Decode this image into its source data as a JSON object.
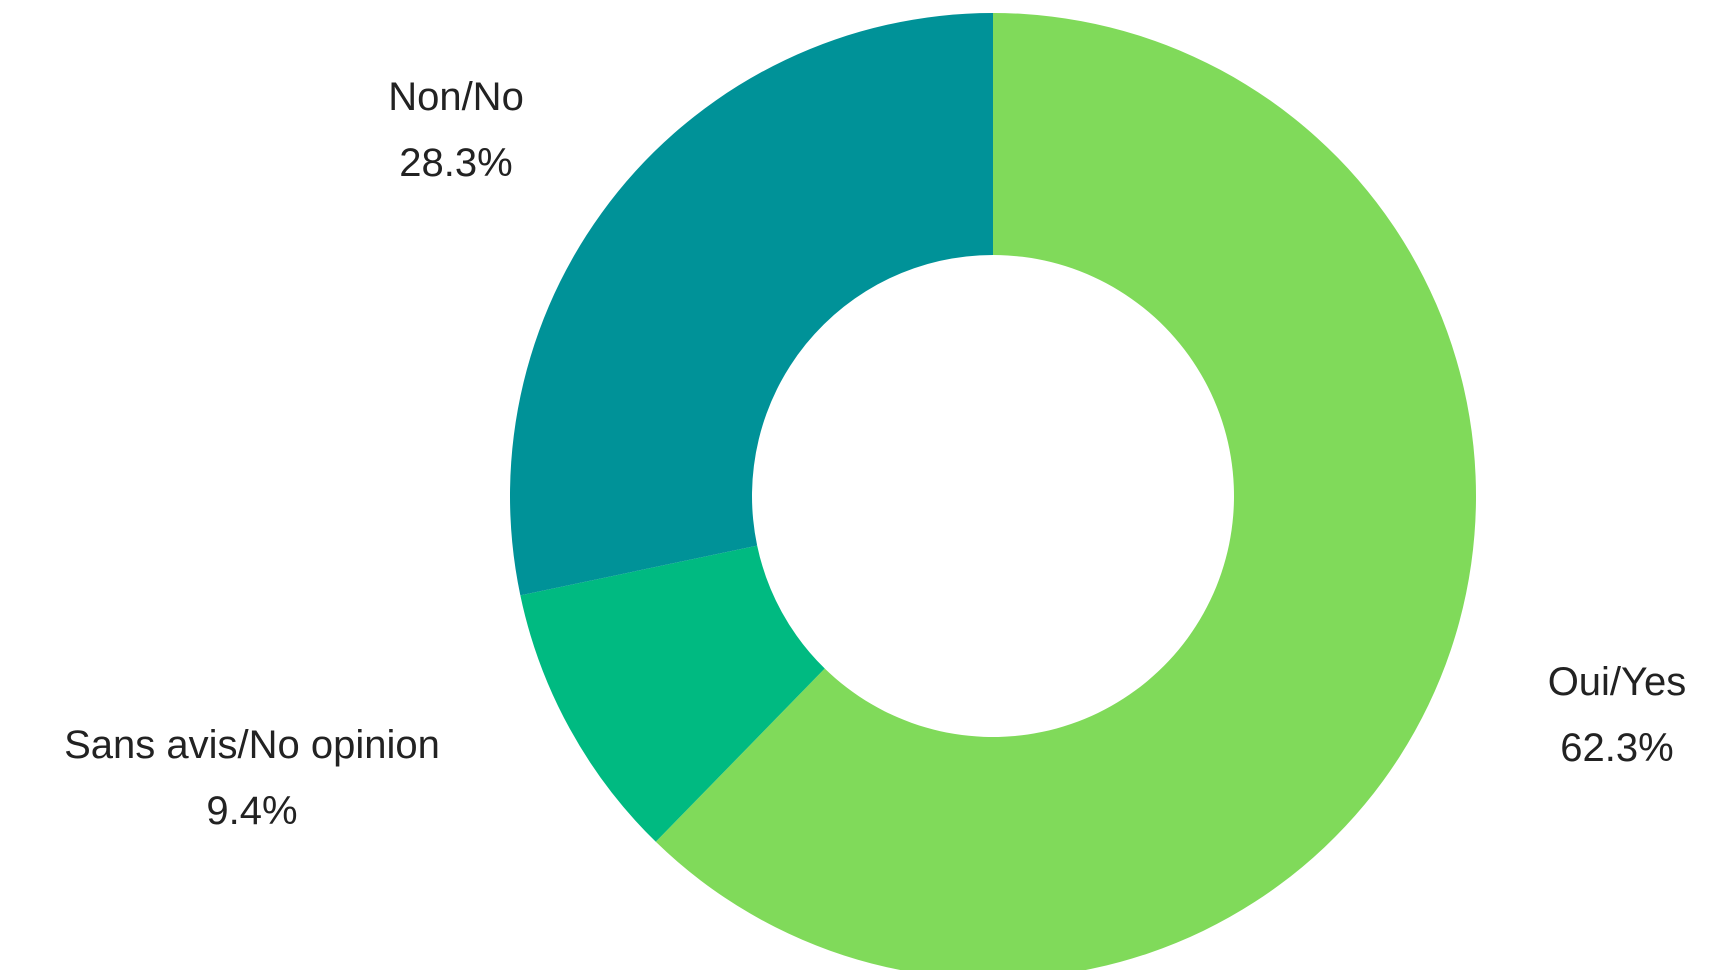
{
  "chart_data": {
    "type": "pie",
    "donut": true,
    "slices": [
      {
        "label": "Oui/Yes",
        "value": 62.3,
        "value_label": "62.3%",
        "color": "#80DA5A"
      },
      {
        "label": "Sans avis/No opinion",
        "value": 9.4,
        "value_label": "9.4%",
        "color": "#00BA81"
      },
      {
        "label": "Non/No",
        "value": 28.3,
        "value_label": "28.3%",
        "color": "#009298"
      }
    ],
    "start_angle_deg": 0,
    "direction": "clockwise",
    "legend": "none"
  }
}
